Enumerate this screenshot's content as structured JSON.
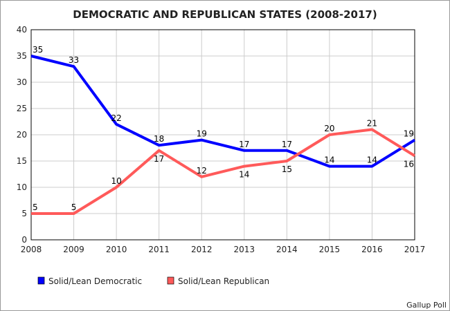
{
  "chart_data": {
    "type": "line",
    "title": "DEMOCRATIC AND REPUBLICAN STATES (2008-2017)",
    "xlabel": "",
    "ylabel": "",
    "categories": [
      "2008",
      "2009",
      "2010",
      "2011",
      "2012",
      "2013",
      "2014",
      "2015",
      "2016",
      "2017"
    ],
    "ylim": [
      0,
      40
    ],
    "yticks": [
      0,
      5,
      10,
      15,
      20,
      25,
      30,
      35,
      40
    ],
    "grid": true,
    "legend_position": "bottom-left",
    "series": [
      {
        "name": "Solid/Lean Democratic",
        "color": "#0000ff",
        "values": [
          35,
          33,
          22,
          18,
          19,
          17,
          17,
          14,
          14,
          19
        ]
      },
      {
        "name": "Solid/Lean Republican",
        "color": "#ff5a5a",
        "values": [
          5,
          5,
          10,
          17,
          12,
          14,
          15,
          20,
          21,
          16
        ]
      }
    ],
    "source": "Gallup Poll"
  }
}
